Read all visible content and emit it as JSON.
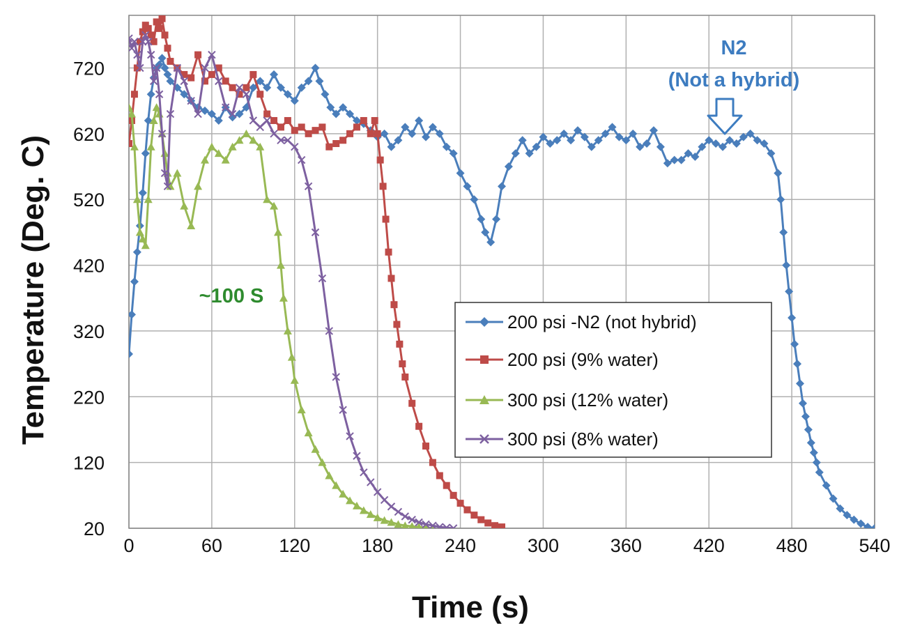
{
  "chart_data": {
    "type": "line",
    "title": "",
    "xlabel": "Time (s)",
    "ylabel": "Temperature (Deg. C)",
    "xlim": [
      0,
      540
    ],
    "ylim": [
      20,
      800
    ],
    "xticks": [
      0,
      60,
      120,
      180,
      240,
      300,
      360,
      420,
      480,
      540
    ],
    "yticks": [
      20,
      120,
      220,
      320,
      420,
      520,
      620,
      720
    ],
    "grid": true,
    "legend_position": "center-right",
    "annotations": [
      {
        "text": "N2",
        "color": "#3D7CC0"
      },
      {
        "text": "(Not a hybrid)",
        "color": "#3D7CC0"
      },
      {
        "text": "~100 S",
        "color": "#2E8B2E"
      }
    ],
    "series": [
      {
        "name": "200 psi -N2 (not hybrid)",
        "color": "#4A7EBB",
        "marker": "diamond",
        "x": [
          0,
          2,
          4,
          6,
          8,
          10,
          12,
          14,
          16,
          18,
          20,
          22,
          24,
          26,
          28,
          30,
          35,
          40,
          45,
          50,
          55,
          60,
          65,
          70,
          75,
          80,
          85,
          90,
          95,
          100,
          105,
          110,
          115,
          120,
          125,
          130,
          135,
          138,
          142,
          146,
          150,
          155,
          160,
          165,
          170,
          175,
          180,
          185,
          190,
          195,
          200,
          205,
          210,
          215,
          220,
          225,
          230,
          235,
          240,
          245,
          250,
          255,
          258,
          262,
          266,
          270,
          275,
          280,
          285,
          290,
          295,
          300,
          305,
          310,
          315,
          320,
          325,
          330,
          335,
          340,
          345,
          350,
          355,
          360,
          365,
          370,
          375,
          380,
          385,
          390,
          395,
          400,
          405,
          410,
          415,
          420,
          425,
          430,
          435,
          440,
          445,
          450,
          455,
          460,
          465,
          470,
          472,
          474,
          476,
          478,
          480,
          482,
          484,
          486,
          488,
          490,
          492,
          494,
          496,
          498,
          500,
          505,
          510,
          515,
          520,
          525,
          530,
          535,
          540
        ],
        "y": [
          285,
          345,
          395,
          440,
          480,
          530,
          590,
          640,
          680,
          705,
          720,
          725,
          735,
          720,
          710,
          700,
          690,
          680,
          670,
          660,
          655,
          650,
          640,
          660,
          645,
          650,
          660,
          690,
          700,
          690,
          710,
          690,
          680,
          670,
          690,
          700,
          720,
          700,
          680,
          660,
          650,
          660,
          650,
          640,
          635,
          625,
          615,
          620,
          600,
          610,
          630,
          620,
          640,
          615,
          630,
          620,
          600,
          590,
          560,
          540,
          520,
          490,
          470,
          455,
          490,
          540,
          570,
          590,
          610,
          590,
          600,
          615,
          605,
          610,
          620,
          610,
          625,
          615,
          600,
          610,
          620,
          630,
          615,
          610,
          620,
          600,
          605,
          625,
          600,
          575,
          580,
          580,
          590,
          585,
          600,
          610,
          605,
          600,
          610,
          605,
          615,
          620,
          610,
          605,
          590,
          560,
          520,
          470,
          420,
          380,
          340,
          300,
          270,
          240,
          210,
          190,
          170,
          150,
          135,
          120,
          105,
          85,
          65,
          50,
          40,
          33,
          27,
          22,
          20
        ]
      },
      {
        "name": "200 psi (9% water)",
        "color": "#BE4B48",
        "marker": "square",
        "x": [
          0,
          2,
          4,
          6,
          8,
          10,
          12,
          14,
          16,
          18,
          20,
          22,
          24,
          26,
          28,
          30,
          35,
          40,
          45,
          50,
          55,
          60,
          65,
          70,
          75,
          80,
          85,
          90,
          95,
          100,
          105,
          110,
          115,
          120,
          125,
          130,
          135,
          140,
          145,
          150,
          155,
          160,
          165,
          170,
          175,
          178,
          180,
          182,
          184,
          186,
          188,
          190,
          192,
          194,
          196,
          198,
          200,
          205,
          210,
          215,
          220,
          225,
          230,
          235,
          240,
          245,
          250,
          255,
          260,
          265,
          270
        ],
        "y": [
          605,
          640,
          680,
          720,
          760,
          775,
          785,
          780,
          770,
          760,
          790,
          780,
          795,
          770,
          750,
          730,
          720,
          710,
          705,
          740,
          700,
          710,
          720,
          700,
          690,
          680,
          690,
          710,
          680,
          650,
          640,
          630,
          640,
          625,
          630,
          620,
          625,
          630,
          600,
          605,
          610,
          620,
          630,
          640,
          620,
          640,
          620,
          580,
          540,
          490,
          440,
          400,
          360,
          330,
          300,
          270,
          250,
          210,
          175,
          145,
          120,
          100,
          85,
          70,
          58,
          48,
          40,
          33,
          28,
          24,
          22
        ]
      },
      {
        "name": "300 psi (12% water)",
        "color": "#98B954",
        "marker": "triangle",
        "x": [
          0,
          2,
          4,
          6,
          8,
          10,
          12,
          14,
          16,
          18,
          20,
          22,
          24,
          26,
          28,
          30,
          35,
          40,
          45,
          50,
          55,
          60,
          65,
          70,
          75,
          80,
          85,
          90,
          95,
          100,
          105,
          108,
          110,
          112,
          115,
          118,
          120,
          125,
          130,
          135,
          140,
          145,
          150,
          155,
          160,
          165,
          170,
          175,
          180,
          185,
          190,
          195,
          200,
          205,
          210,
          215,
          220
        ],
        "y": [
          660,
          650,
          600,
          520,
          470,
          460,
          450,
          520,
          600,
          640,
          660,
          650,
          620,
          590,
          560,
          540,
          560,
          510,
          480,
          540,
          580,
          600,
          590,
          580,
          600,
          610,
          620,
          610,
          600,
          520,
          510,
          470,
          420,
          370,
          320,
          280,
          245,
          200,
          165,
          140,
          120,
          100,
          85,
          72,
          62,
          54,
          47,
          41,
          36,
          32,
          29,
          26,
          24,
          23,
          22,
          21,
          20
        ]
      },
      {
        "name": "300 psi (8% water)",
        "color": "#7D60A0",
        "marker": "x",
        "x": [
          0,
          2,
          4,
          6,
          8,
          10,
          12,
          14,
          16,
          18,
          20,
          22,
          24,
          26,
          28,
          30,
          35,
          40,
          45,
          50,
          55,
          60,
          65,
          70,
          75,
          80,
          85,
          90,
          95,
          100,
          105,
          110,
          115,
          120,
          125,
          130,
          135,
          140,
          145,
          150,
          155,
          160,
          165,
          170,
          175,
          180,
          185,
          190,
          195,
          200,
          205,
          210,
          215,
          220,
          225,
          230,
          235
        ],
        "y": [
          765,
          750,
          760,
          740,
          720,
          760,
          770,
          760,
          740,
          700,
          720,
          680,
          620,
          560,
          540,
          650,
          720,
          700,
          670,
          650,
          720,
          740,
          700,
          660,
          650,
          690,
          680,
          640,
          630,
          640,
          620,
          610,
          610,
          600,
          580,
          540,
          470,
          400,
          320,
          250,
          200,
          160,
          130,
          105,
          90,
          75,
          63,
          53,
          45,
          38,
          33,
          29,
          26,
          24,
          22,
          21,
          20
        ]
      }
    ]
  }
}
